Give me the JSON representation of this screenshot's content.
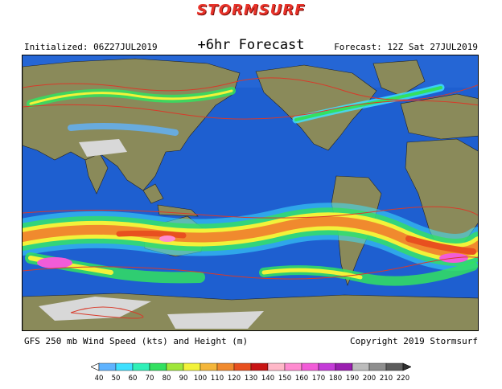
{
  "header": {
    "brand": "STORMSURF",
    "forecast_label": "+6hr Forecast",
    "initialized": "Initialized: 06Z27JUL2019",
    "valid": "Forecast: 12Z Sat 27JUL2019"
  },
  "footer": {
    "product": "GFS 250 mb Wind Speed (kts) and Height (m)",
    "copyright": "Copyright 2019 Stormsurf"
  },
  "colorbar": {
    "units": "kts",
    "labels": [
      "40",
      "50",
      "60",
      "70",
      "80",
      "90",
      "100",
      "110",
      "120",
      "130",
      "140",
      "150",
      "160",
      "170",
      "180",
      "190",
      "200",
      "210",
      "220"
    ],
    "colors": [
      "#5fb3ff",
      "#3ee0ff",
      "#2ff0b8",
      "#33e060",
      "#9fe63a",
      "#f2f23a",
      "#f4b63a",
      "#f08a2e",
      "#e8501f",
      "#c81414",
      "#ffb8c8",
      "#ff8cd0",
      "#f25cd8",
      "#c43cd8",
      "#9a1fb0",
      "#bcbcbc",
      "#8e8e8e",
      "#5c5c5c"
    ]
  },
  "colors": {
    "ocean": "#1e5fd0",
    "land": "#8a8a5a",
    "ice": "#d8d8d8",
    "height_contours": "#d83a2a"
  }
}
